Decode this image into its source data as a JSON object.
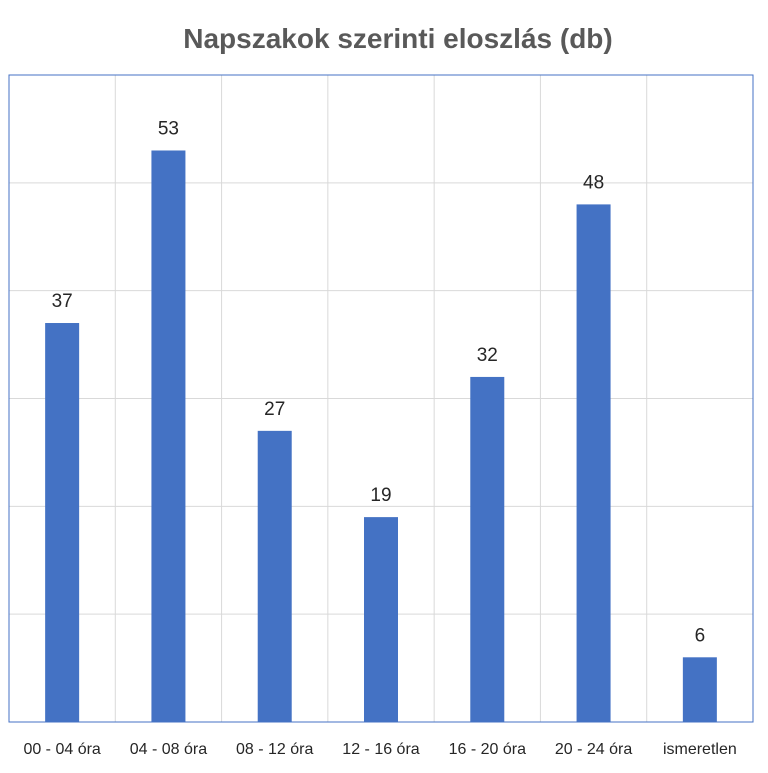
{
  "chart_data": {
    "type": "bar",
    "title": "Napszakok szerinti eloszlás (db)",
    "xlabel": "",
    "ylabel": "",
    "categories": [
      "00 - 04 óra",
      "04 - 08 óra",
      "08 - 12 óra",
      "12 - 16 óra",
      "16 - 20 óra",
      "20 - 24 óra",
      "ismeretlen"
    ],
    "values": [
      37,
      53,
      27,
      19,
      32,
      48,
      6
    ],
    "ylim": [
      0,
      60
    ],
    "y_gridline_step": 10,
    "grid": true,
    "data_labels": true,
    "legend": "none",
    "bar_color": "#4472C4",
    "border_color": "#4472C4",
    "grid_color": "#D9D9D9"
  }
}
